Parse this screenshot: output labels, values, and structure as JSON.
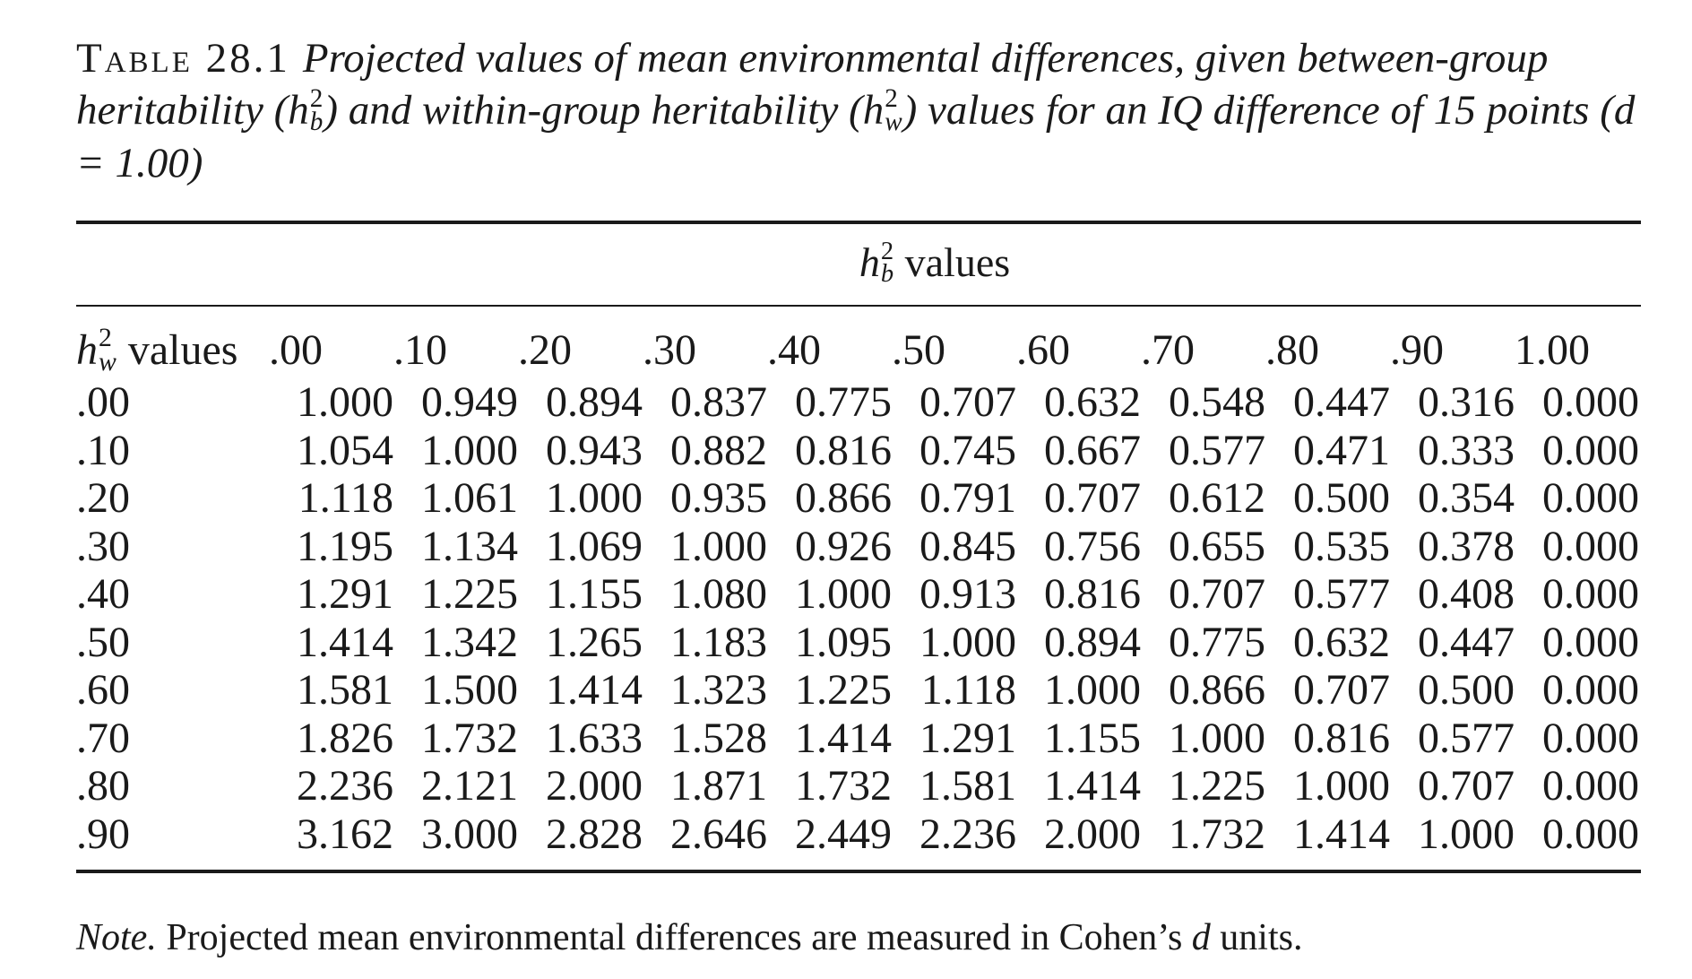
{
  "caption": {
    "label": "Table 28.1",
    "text_1": "Projected values of mean environmental differences, given between-group heritability (",
    "text_2": ") and within-group heritability (",
    "text_3": ") values for an IQ difference of 15 points (d = 1.00)",
    "h_symbol": "h",
    "superscript": "2",
    "sub_b": "b",
    "sub_w": "w"
  },
  "table": {
    "spanner_suffix": "values",
    "row_header_suffix": "values",
    "columns": [
      ".00",
      ".10",
      ".20",
      ".30",
      ".40",
      ".50",
      ".60",
      ".70",
      ".80",
      ".90",
      "1.00"
    ],
    "rows": [
      {
        "label": ".00",
        "values": [
          "1.000",
          "0.949",
          "0.894",
          "0.837",
          "0.775",
          "0.707",
          "0.632",
          "0.548",
          "0.447",
          "0.316",
          "0.000"
        ]
      },
      {
        "label": ".10",
        "values": [
          "1.054",
          "1.000",
          "0.943",
          "0.882",
          "0.816",
          "0.745",
          "0.667",
          "0.577",
          "0.471",
          "0.333",
          "0.000"
        ]
      },
      {
        "label": ".20",
        "values": [
          "1.118",
          "1.061",
          "1.000",
          "0.935",
          "0.866",
          "0.791",
          "0.707",
          "0.612",
          "0.500",
          "0.354",
          "0.000"
        ]
      },
      {
        "label": ".30",
        "values": [
          "1.195",
          "1.134",
          "1.069",
          "1.000",
          "0.926",
          "0.845",
          "0.756",
          "0.655",
          "0.535",
          "0.378",
          "0.000"
        ]
      },
      {
        "label": ".40",
        "values": [
          "1.291",
          "1.225",
          "1.155",
          "1.080",
          "1.000",
          "0.913",
          "0.816",
          "0.707",
          "0.577",
          "0.408",
          "0.000"
        ]
      },
      {
        "label": ".50",
        "values": [
          "1.414",
          "1.342",
          "1.265",
          "1.183",
          "1.095",
          "1.000",
          "0.894",
          "0.775",
          "0.632",
          "0.447",
          "0.000"
        ]
      },
      {
        "label": ".60",
        "values": [
          "1.581",
          "1.500",
          "1.414",
          "1.323",
          "1.225",
          "1.118",
          "1.000",
          "0.866",
          "0.707",
          "0.500",
          "0.000"
        ]
      },
      {
        "label": ".70",
        "values": [
          "1.826",
          "1.732",
          "1.633",
          "1.528",
          "1.414",
          "1.291",
          "1.155",
          "1.000",
          "0.816",
          "0.577",
          "0.000"
        ]
      },
      {
        "label": ".80",
        "values": [
          "2.236",
          "2.121",
          "2.000",
          "1.871",
          "1.732",
          "1.581",
          "1.414",
          "1.225",
          "1.000",
          "0.707",
          "0.000"
        ]
      },
      {
        "label": ".90",
        "values": [
          "3.162",
          "3.000",
          "2.828",
          "2.646",
          "2.449",
          "2.236",
          "2.000",
          "1.732",
          "1.414",
          "1.000",
          "0.000"
        ]
      }
    ]
  },
  "note": {
    "label": "Note.",
    "text_1": " Projected mean environmental differences are measured in Cohen’s ",
    "d": "d",
    "text_2": " units."
  }
}
